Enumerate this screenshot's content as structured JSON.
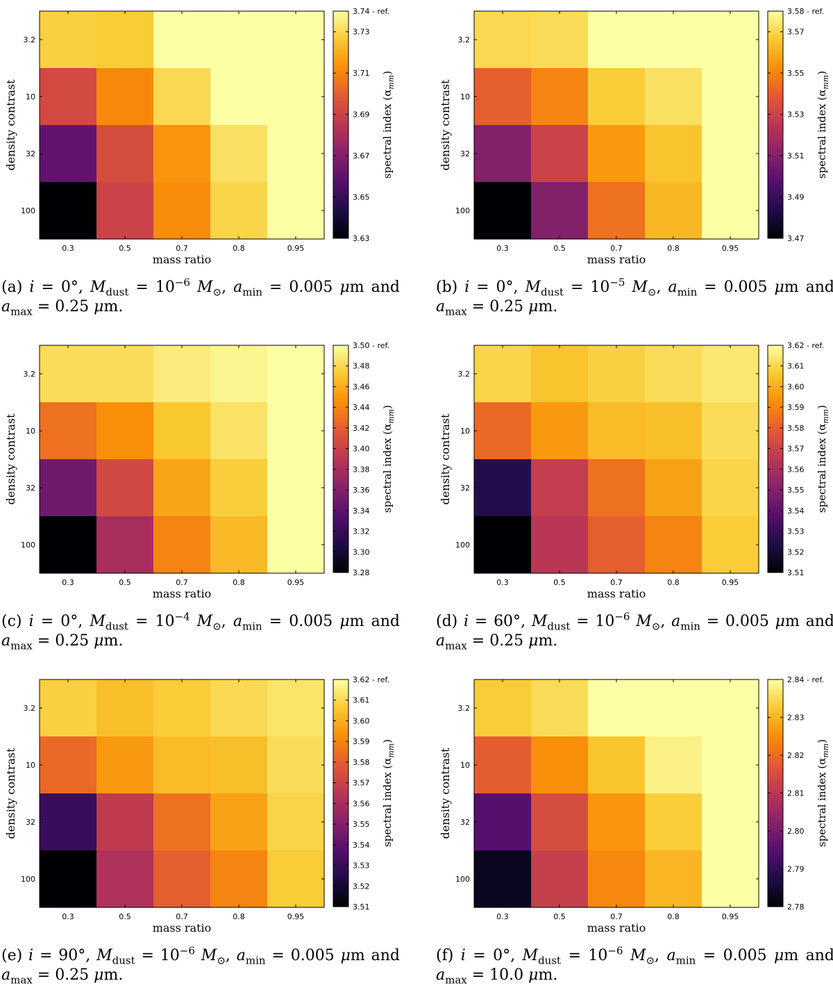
{
  "figure": {
    "colormap": [
      "#000004",
      "#1f0c48",
      "#550f6d",
      "#88226a",
      "#ba3655",
      "#e35933",
      "#f98e09",
      "#f9c932",
      "#fcffa4"
    ],
    "shared": {
      "xlabel": "mass ratio",
      "ylabel": "density contrast",
      "colorbar_label": "spectral index (α",
      "colorbar_label_sub": "mm",
      "colorbar_label_close": ")",
      "ref_suffix": "- ref."
    },
    "captions": [
      {
        "tag": "(a)",
        "i": "0°",
        "mdust_exp": "−6",
        "amin": "0.005",
        "amax": "0.25"
      },
      {
        "tag": "(b)",
        "i": "0°",
        "mdust_exp": "−5",
        "amin": "0.005",
        "amax": "0.25"
      },
      {
        "tag": "(c)",
        "i": "0°",
        "mdust_exp": "−4",
        "amin": "0.005",
        "amax": "0.25"
      },
      {
        "tag": "(d)",
        "i": "60°",
        "mdust_exp": "−6",
        "amin": "0.005",
        "amax": "0.25"
      },
      {
        "tag": "(e)",
        "i": "90°",
        "mdust_exp": "−6",
        "amin": "0.005",
        "amax": "0.25"
      },
      {
        "tag": "(f)",
        "i": "0°",
        "mdust_exp": "−6",
        "amin": "0.005",
        "amax": "10.0"
      }
    ]
  },
  "chart_data": [
    {
      "type": "heatmap",
      "title": "(a)",
      "xlabel": "mass ratio",
      "ylabel": "density contrast",
      "x": [
        "0.3",
        "0.5",
        "0.7",
        "0.8",
        "0.95"
      ],
      "y": [
        "3.2",
        "10",
        "32",
        "100"
      ],
      "values": [
        [
          3.728,
          3.727,
          3.74,
          3.74,
          3.74
        ],
        [
          3.693,
          3.711,
          3.73,
          3.74,
          3.74
        ],
        [
          3.661,
          3.694,
          3.714,
          3.732,
          3.74
        ],
        [
          3.63,
          3.69,
          3.712,
          3.729,
          3.74
        ]
      ],
      "colorbar": {
        "label": "spectral index (α_mm)",
        "ticks": [
          "3.63",
          "3.65",
          "3.67",
          "3.69",
          "3.71",
          "3.73",
          "3.74"
        ],
        "ref_tick": "3.74 - ref.",
        "vmin": 3.63,
        "vmax": 3.74
      }
    },
    {
      "type": "heatmap",
      "title": "(b)",
      "xlabel": "mass ratio",
      "ylabel": "density contrast",
      "x": [
        "0.3",
        "0.5",
        "0.7",
        "0.8",
        "0.95"
      ],
      "y": [
        "3.2",
        "10",
        "32",
        "100"
      ],
      "values": [
        [
          3.57,
          3.571,
          3.58,
          3.58,
          3.58
        ],
        [
          3.54,
          3.55,
          3.567,
          3.572,
          3.58
        ],
        [
          3.51,
          3.53,
          3.555,
          3.565,
          3.58
        ],
        [
          3.47,
          3.51,
          3.545,
          3.562,
          3.58
        ]
      ],
      "colorbar": {
        "label": "spectral index (α_mm)",
        "ticks": [
          "3.47",
          "3.49",
          "3.51",
          "3.53",
          "3.55",
          "3.57",
          "3.58"
        ],
        "ref_tick": "3.58 - ref.",
        "vmin": 3.47,
        "vmax": 3.58
      }
    },
    {
      "type": "heatmap",
      "title": "(c)",
      "xlabel": "mass ratio",
      "ylabel": "density contrast",
      "x": [
        "0.3",
        "0.5",
        "0.7",
        "0.8",
        "0.95"
      ],
      "y": [
        "3.2",
        "10",
        "32",
        "100"
      ],
      "values": [
        [
          3.482,
          3.482,
          3.49,
          3.495,
          3.5
        ],
        [
          3.43,
          3.445,
          3.472,
          3.485,
          3.5
        ],
        [
          3.35,
          3.405,
          3.455,
          3.475,
          3.5
        ],
        [
          3.28,
          3.38,
          3.44,
          3.465,
          3.5
        ]
      ],
      "colorbar": {
        "label": "spectral index (α_mm)",
        "ticks": [
          "3.28",
          "3.30",
          "3.32",
          "3.34",
          "3.36",
          "3.38",
          "3.40",
          "3.42",
          "3.44",
          "3.46",
          "3.48",
          "3.50"
        ],
        "ref_tick": "3.50 - ref.",
        "vmin": 3.28,
        "vmax": 3.5
      }
    },
    {
      "type": "heatmap",
      "title": "(d)",
      "xlabel": "mass ratio",
      "ylabel": "density contrast",
      "x": [
        "0.3",
        "0.5",
        "0.7",
        "0.8",
        "0.95"
      ],
      "y": [
        "3.2",
        "10",
        "32",
        "100"
      ],
      "values": [
        [
          3.609,
          3.605,
          3.608,
          3.611,
          3.614
        ],
        [
          3.583,
          3.595,
          3.603,
          3.604,
          3.611
        ],
        [
          3.525,
          3.568,
          3.585,
          3.597,
          3.609
        ],
        [
          3.51,
          3.565,
          3.58,
          3.59,
          3.607
        ]
      ],
      "colorbar": {
        "label": "spectral index (α_mm)",
        "ticks": [
          "3.51",
          "3.52",
          "3.53",
          "3.54",
          "3.55",
          "3.56",
          "3.57",
          "3.58",
          "3.59",
          "3.60",
          "3.61",
          "3.62"
        ],
        "ref_tick": "3.62 - ref.",
        "vmin": 3.51,
        "vmax": 3.62
      }
    },
    {
      "type": "heatmap",
      "title": "(e)",
      "xlabel": "mass ratio",
      "ylabel": "density contrast",
      "x": [
        "0.3",
        "0.5",
        "0.7",
        "0.8",
        "0.95"
      ],
      "y": [
        "3.2",
        "10",
        "32",
        "100"
      ],
      "values": [
        [
          3.608,
          3.604,
          3.607,
          3.61,
          3.613
        ],
        [
          3.583,
          3.595,
          3.603,
          3.604,
          3.611
        ],
        [
          3.53,
          3.567,
          3.585,
          3.597,
          3.609
        ],
        [
          3.51,
          3.562,
          3.58,
          3.59,
          3.607
        ]
      ],
      "colorbar": {
        "label": "spectral index (α_mm)",
        "ticks": [
          "3.51",
          "3.52",
          "3.53",
          "3.54",
          "3.55",
          "3.56",
          "3.57",
          "3.58",
          "3.59",
          "3.60",
          "3.61",
          "3.62"
        ],
        "ref_tick": "3.62 - ref.",
        "vmin": 3.51,
        "vmax": 3.62
      }
    },
    {
      "type": "heatmap",
      "title": "(f)",
      "xlabel": "mass ratio",
      "ylabel": "density contrast",
      "x": [
        "0.3",
        "0.5",
        "0.7",
        "0.8",
        "0.95"
      ],
      "y": [
        "3.2",
        "10",
        "32",
        "100"
      ],
      "values": [
        [
          2.833,
          2.835,
          2.84,
          2.84,
          2.84
        ],
        [
          2.818,
          2.825,
          2.832,
          2.838,
          2.84
        ],
        [
          2.795,
          2.815,
          2.826,
          2.833,
          2.84
        ],
        [
          2.783,
          2.812,
          2.824,
          2.83,
          2.84
        ]
      ],
      "colorbar": {
        "label": "spectral index (α_mm)",
        "ticks": [
          "2.78",
          "2.79",
          "2.80",
          "2.81",
          "2.82",
          "2.83",
          "2.84"
        ],
        "ref_tick": "2.84 - ref.",
        "vmin": 2.78,
        "vmax": 2.84
      }
    }
  ]
}
